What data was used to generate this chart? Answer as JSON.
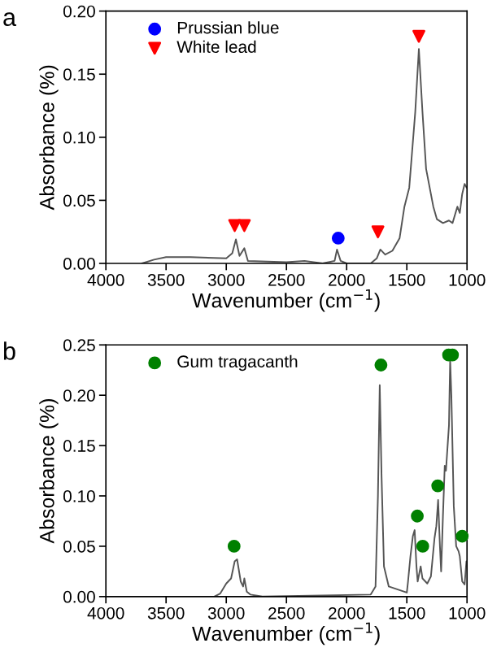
{
  "chart_data": [
    {
      "type": "line",
      "title": "a",
      "xlabel": "Wavenumber (cm$^{−1}$)",
      "ylabel": "Absorbance (%)",
      "xlim": [
        4000,
        1000
      ],
      "xticks": [
        4000,
        3500,
        3000,
        2500,
        2000,
        1500,
        1000
      ],
      "ylim": [
        0,
        0.2
      ],
      "yticks": [
        {
          "value": 0,
          "label": "0.00"
        },
        {
          "value": 0.05,
          "label": "0.05"
        },
        {
          "value": 0.1,
          "label": "0.10"
        },
        {
          "value": 0.15,
          "label": "0.15"
        },
        {
          "value": 0.2,
          "label": "0.20"
        }
      ],
      "grid": false,
      "legend": "top left",
      "series": [
        {
          "color": "#555555",
          "x": [
            3700,
            3600,
            3500,
            3300,
            3000,
            2950,
            2920,
            2890,
            2850,
            2820,
            2500,
            2350,
            2200,
            2100,
            2080,
            2050,
            2000,
            1800,
            1750,
            1720,
            1680,
            1620,
            1560,
            1520,
            1480,
            1430,
            1400,
            1370,
            1340,
            1280,
            1250,
            1200,
            1150,
            1120,
            1080,
            1060,
            1040,
            1020,
            1003
          ],
          "values": [
            0,
            0.003,
            0.005,
            0.005,
            0.004,
            0.008,
            0.019,
            0.006,
            0.012,
            0.002,
            0.001,
            0.002,
            0,
            0.002,
            0.011,
            0.002,
            0,
            0,
            0.004,
            0.011,
            0.007,
            0.01,
            0.02,
            0.045,
            0.06,
            0.12,
            0.17,
            0.12,
            0.075,
            0.045,
            0.035,
            0.032,
            0.034,
            0.032,
            0.045,
            0.04,
            0.055,
            0.063,
            0.06
          ]
        },
        {
          "type": "scatter",
          "name": "Prussian blue",
          "color": "#0000ff",
          "marker": "circle",
          "x": [
            2070
          ],
          "values": [
            0.02
          ]
        },
        {
          "type": "scatter",
          "name": "White lead",
          "color": "#ff0000",
          "marker": "triangle",
          "x": [
            2930,
            2850,
            1740,
            1400
          ],
          "values": [
            0.03,
            0.03,
            0.025,
            0.18
          ]
        }
      ]
    },
    {
      "type": "line",
      "title": "b",
      "xlabel": "Wavenumber (cm$^{−1}$)",
      "ylabel": "Absorbance (%)",
      "xlim": [
        4000,
        1000
      ],
      "xticks": [
        4000,
        3500,
        3000,
        2500,
        2000,
        1500,
        1000
      ],
      "ylim": [
        0,
        0.25
      ],
      "yticks": [
        {
          "value": 0,
          "label": "0.00"
        },
        {
          "value": 0.05,
          "label": "0.05"
        },
        {
          "value": 0.1,
          "label": "0.10"
        },
        {
          "value": 0.15,
          "label": "0.15"
        },
        {
          "value": 0.2,
          "label": "0.20"
        },
        {
          "value": 0.25,
          "label": "0.25"
        }
      ],
      "grid": false,
      "legend": "top left",
      "series": [
        {
          "color": "#555555",
          "x": [
            3100,
            3050,
            3000,
            2960,
            2930,
            2910,
            2880,
            2860,
            2850,
            2830,
            2800,
            2700,
            1800,
            1760,
            1740,
            1725,
            1710,
            1690,
            1650,
            1600,
            1500,
            1490,
            1470,
            1450,
            1435,
            1420,
            1410,
            1385,
            1370,
            1330,
            1300,
            1270,
            1255,
            1240,
            1225,
            1215,
            1200,
            1185,
            1175,
            1150,
            1140,
            1130,
            1110,
            1090,
            1070,
            1060,
            1040,
            1020,
            1005
          ],
          "values": [
            0,
            0.003,
            0.013,
            0.018,
            0.035,
            0.037,
            0.015,
            0.01,
            0.018,
            0.005,
            0.002,
            0,
            0.002,
            0.01,
            0.1,
            0.21,
            0.12,
            0.03,
            0.01,
            0.008,
            0.004,
            0.015,
            0.04,
            0.06,
            0.066,
            0.03,
            0.015,
            0.03,
            0.018,
            0.013,
            0.02,
            0.058,
            0.07,
            0.096,
            0.05,
            0.025,
            0.08,
            0.13,
            0.125,
            0.17,
            0.235,
            0.2,
            0.09,
            0.05,
            0.045,
            0.04,
            0.015,
            0.012,
            0.035
          ]
        },
        {
          "type": "scatter",
          "name": "Gum tragacanth",
          "color": "#008000",
          "marker": "circle",
          "x": [
            2935,
            1715,
            1413,
            1368,
            1243,
            1153,
            1121,
            1040
          ],
          "values": [
            0.05,
            0.23,
            0.08,
            0.05,
            0.11,
            0.24,
            0.24,
            0.06
          ]
        }
      ]
    }
  ]
}
